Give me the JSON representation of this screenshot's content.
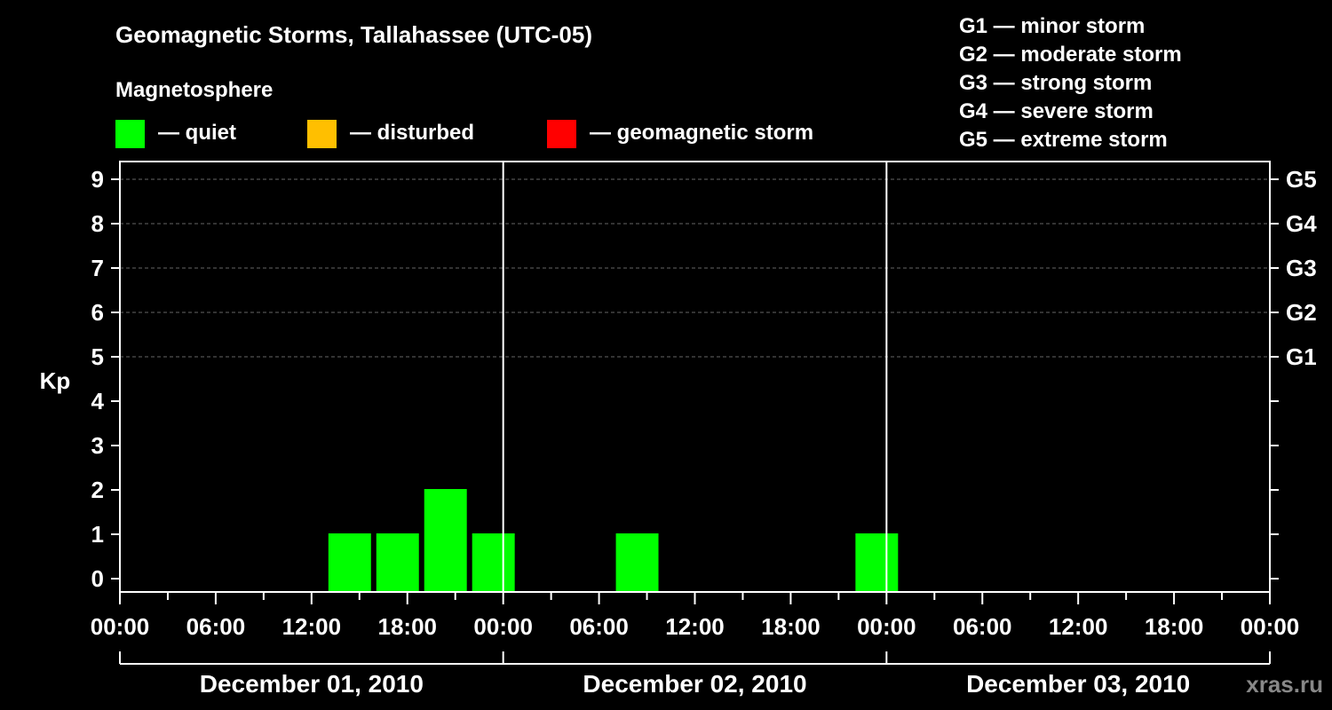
{
  "chart_data": {
    "type": "bar",
    "title": "Geomagnetic Storms, Tallahassee (UTC-05)",
    "legend_title": "Magnetosphere",
    "legend": [
      {
        "label": "— quiet",
        "color": "#00ff00"
      },
      {
        "label": "— disturbed",
        "color": "#ffbf00"
      },
      {
        "label": "— geomagnetic storm",
        "color": "#ff0000"
      }
    ],
    "storm_scale": [
      "G1 — minor storm",
      "G2 — moderate storm",
      "G3 — strong storm",
      "G4 — severe storm",
      "G5 — extreme storm"
    ],
    "ylabel": "Kp",
    "ylim": [
      0,
      9
    ],
    "y_ticks": [
      0,
      1,
      2,
      3,
      4,
      5,
      6,
      7,
      8,
      9
    ],
    "right_labels": [
      {
        "kp": 5,
        "label": "G1"
      },
      {
        "kp": 6,
        "label": "G2"
      },
      {
        "kp": 7,
        "label": "G3"
      },
      {
        "kp": 8,
        "label": "G4"
      },
      {
        "kp": 9,
        "label": "G5"
      }
    ],
    "x_tick_labels": [
      "00:00",
      "06:00",
      "12:00",
      "18:00",
      "00:00",
      "06:00",
      "12:00",
      "18:00",
      "00:00",
      "06:00",
      "12:00",
      "18:00",
      "00:00"
    ],
    "days": [
      "December 01, 2010",
      "December 02, 2010",
      "December 03, 2010"
    ],
    "grid": true,
    "bars": [
      {
        "start_hour": 13,
        "kp": 1,
        "status": "quiet"
      },
      {
        "start_hour": 16,
        "kp": 1,
        "status": "quiet"
      },
      {
        "start_hour": 19,
        "kp": 2,
        "status": "quiet"
      },
      {
        "start_hour": 22,
        "kp": 1,
        "status": "quiet"
      },
      {
        "start_hour": 31,
        "kp": 1,
        "status": "quiet"
      },
      {
        "start_hour": 46,
        "kp": 1,
        "status": "quiet"
      }
    ],
    "colors": {
      "quiet": "#00ff00",
      "disturbed": "#ffbf00",
      "storm": "#ff0000"
    }
  },
  "watermark": "xras.ru"
}
